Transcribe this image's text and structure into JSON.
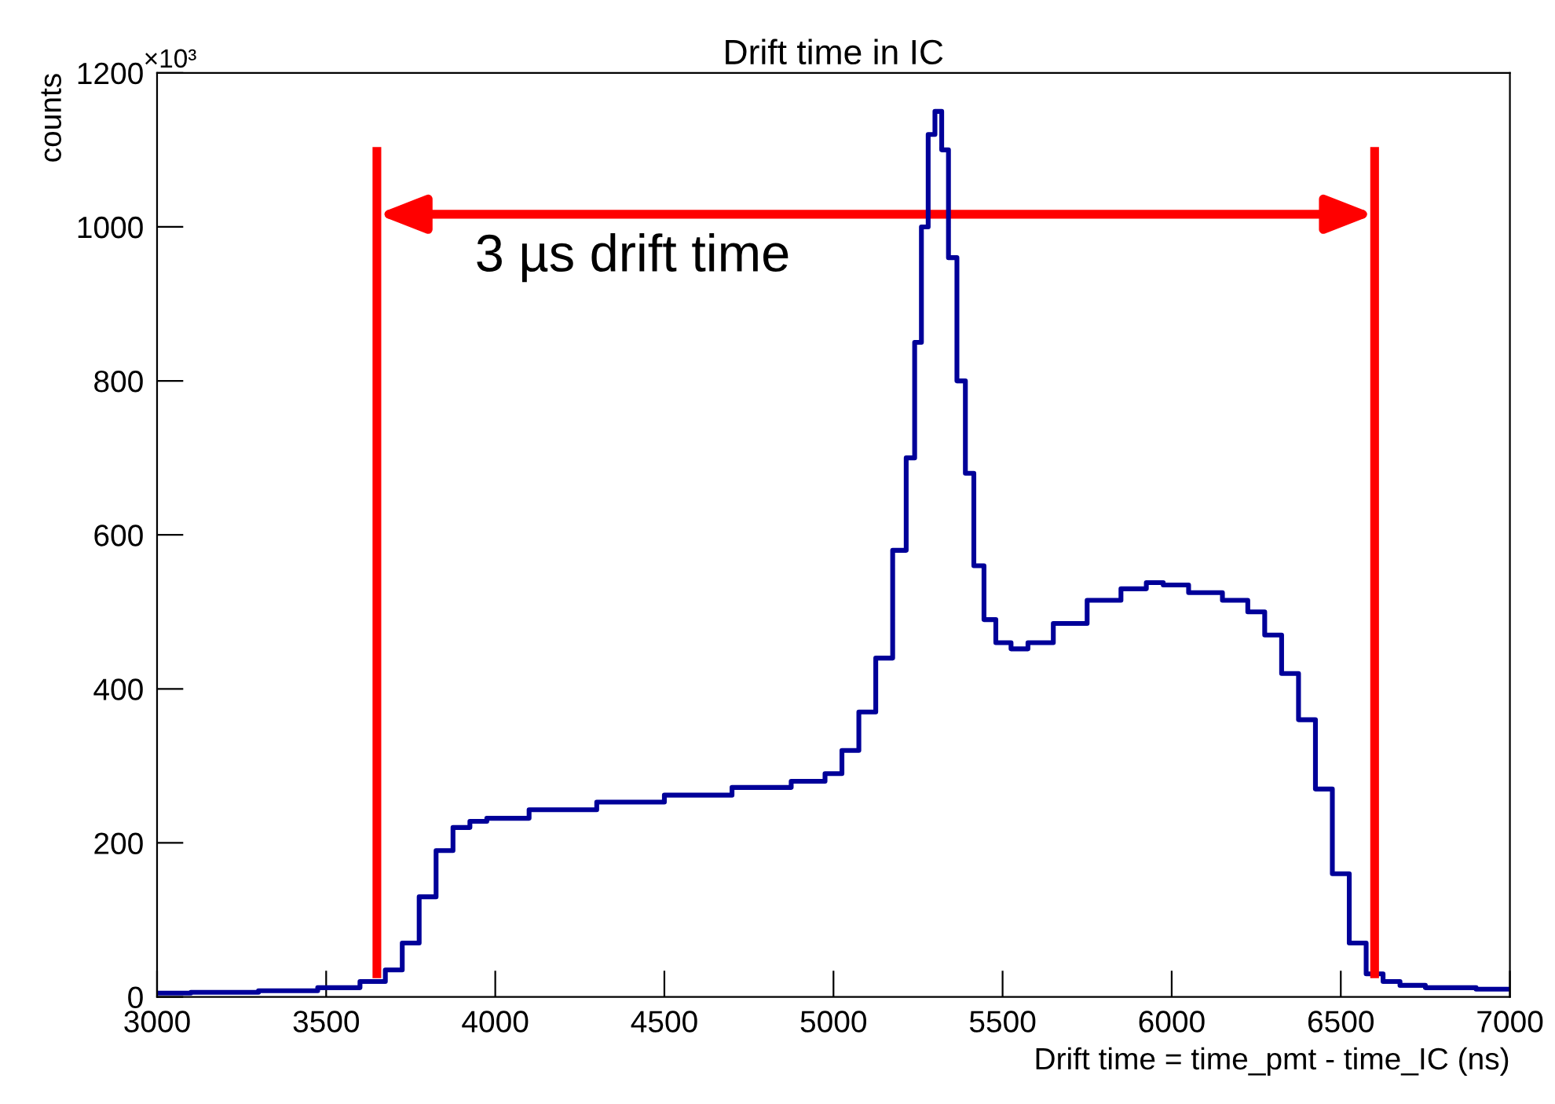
{
  "chart_data": {
    "type": "step",
    "title": "Drift time in IC",
    "xlabel": "Drift time = time_pmt - time_IC (ns)",
    "ylabel": "counts",
    "annotations": [
      "×10³",
      "3 µs drift time"
    ],
    "x": [
      3000,
      3200,
      3400,
      3550,
      3650,
      3700,
      3750,
      3800,
      3850,
      3900,
      3950,
      4000,
      4200,
      4400,
      4600,
      4800,
      4950,
      5000,
      5050,
      5100,
      5150,
      5200,
      5230,
      5250,
      5270,
      5290,
      5310,
      5330,
      5350,
      5380,
      5400,
      5430,
      5460,
      5500,
      5550,
      5600,
      5700,
      5800,
      5900,
      5950,
      6000,
      6100,
      6200,
      6250,
      6300,
      6350,
      6400,
      6450,
      6500,
      6550,
      6600,
      6650,
      6700,
      6800,
      7000
    ],
    "series": [
      {
        "color": "#000099",
        "values": [
          5,
          6,
          8,
          12,
          20,
          35,
          70,
          130,
          190,
          220,
          228,
          232,
          243,
          253,
          262,
          272,
          280,
          290,
          320,
          370,
          440,
          580,
          700,
          850,
          1000,
          1120,
          1150,
          1100,
          960,
          800,
          680,
          560,
          490,
          460,
          452,
          460,
          485,
          515,
          530,
          538,
          535,
          525,
          515,
          500,
          470,
          420,
          360,
          270,
          160,
          70,
          30,
          20,
          15,
          12,
          10
        ]
      }
    ],
    "xlim": [
      3000,
      7000
    ],
    "ylim": [
      0,
      1200
    ],
    "xticks": [
      3000,
      3500,
      4000,
      4500,
      5000,
      5500,
      6000,
      6500,
      7000
    ],
    "yticks": [
      0,
      200,
      400,
      600,
      800,
      1000,
      1200
    ],
    "ref_lines": [
      {
        "axis": "x",
        "value": 3650,
        "color": "#ff0000"
      },
      {
        "axis": "x",
        "value": 6600,
        "color": "#ff0000"
      }
    ],
    "grid": false,
    "legend": false
  }
}
